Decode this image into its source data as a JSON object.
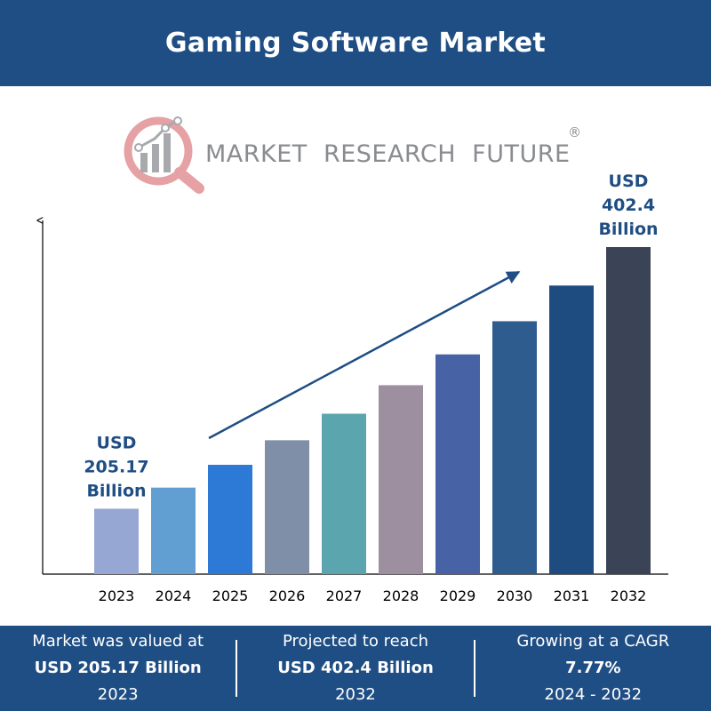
{
  "header": {
    "title": "Gaming Software Market"
  },
  "logo": {
    "text": "MARKET  RESEARCH  FUTURE",
    "reg": "®"
  },
  "chart_data": {
    "type": "bar",
    "categories": [
      "2023",
      "2024",
      "2025",
      "2026",
      "2027",
      "2028",
      "2029",
      "2030",
      "2031",
      "2032"
    ],
    "values": [
      205.17,
      221.1,
      238.3,
      256.8,
      276.8,
      298.3,
      321.5,
      346.5,
      373.4,
      402.4
    ],
    "ylim": [
      180,
      402.4
    ],
    "colors": [
      "#97a7d4",
      "#619fd2",
      "#2d7ad6",
      "#808fa8",
      "#5aa5ae",
      "#9e8fa0",
      "#4862a6",
      "#2e5c8e",
      "#1e4b80",
      "#3b4456"
    ],
    "annotations": [
      {
        "category": "2023",
        "lines": [
          "USD",
          "205.17",
          "Billion"
        ]
      },
      {
        "category": "2032",
        "lines": [
          "USD",
          "402.4",
          "Billion"
        ]
      }
    ],
    "annotation_color": "#1f4e84",
    "trend_arrow": true
  },
  "footer": {
    "stats": [
      {
        "line1": "Market was valued at",
        "line2": "USD 205.17 Billion",
        "line3": "2023"
      },
      {
        "line1": "Projected to reach",
        "line2": "USD 402.4 Billion",
        "line3": "2032"
      },
      {
        "line1": "Growing at a CAGR",
        "line2": "7.77%",
        "line3": "2024 - 2032"
      }
    ]
  }
}
